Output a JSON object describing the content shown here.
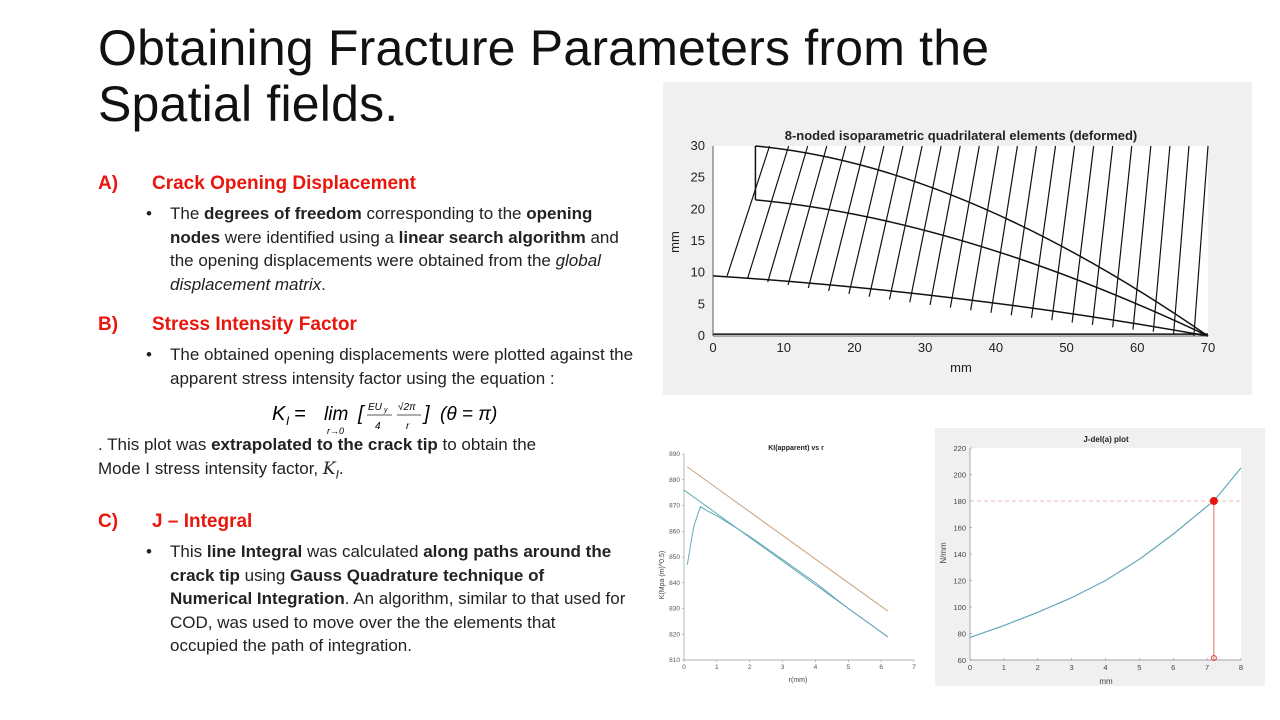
{
  "title": {
    "line1": "Obtaining Fracture Parameters from the",
    "line2": "Spatial fields."
  },
  "sections": {
    "a": {
      "letter": "A)",
      "heading": "Crack Opening Displacement",
      "t1": "The ",
      "b1": "degrees of freedom",
      "t2": " corresponding to the ",
      "b2": "opening nodes",
      "t3": " were identified using a ",
      "b3": "linear search algorithm",
      "t4": " and the opening displacements were obtained from the ",
      "i1": "global displacement matrix",
      "t5": "."
    },
    "b": {
      "letter": "B)",
      "heading": "Stress Intensity Factor",
      "t1": "The obtained opening displacements were plotted against the apparent stress intensity factor using the equation :",
      "p1": ". This plot was ",
      "pb1": "extrapolated to the crack tip",
      "p2": " to obtain the Mode I stress intensity factor, ",
      "p3": "K",
      "p4": "I",
      "p5": "."
    },
    "c": {
      "letter": "C)",
      "heading": "J – Integral",
      "t1": "This ",
      "b1": "line Integral",
      "t2": " was calculated ",
      "b2": "along paths around the crack tip",
      "t3": " using ",
      "b3": "Gauss Quadrature technique of Numerical Integration",
      "t4": ". An algorithm, similar to that used for COD, was used to move over the the elements that occupied the path of integration."
    }
  },
  "equation": {
    "lhs": "K",
    "lhs_sub": "I",
    "eq": " = ",
    "lim": "lim",
    "lim_sub": "r→0",
    "num1": "EU",
    "num1_sub": "y",
    "den1": "4",
    "num2": "√2π",
    "den2": "r",
    "tail": "(θ = π)"
  },
  "chart_data": [
    {
      "type": "mesh",
      "title": "8-noded isoparametric quadrilateral elements (deformed)",
      "xlabel": "mm",
      "ylabel": "mm",
      "xlim": [
        0,
        70
      ],
      "ylim": [
        0,
        30
      ],
      "xticks": [
        "0",
        "10",
        "20",
        "30",
        "40",
        "50",
        "60",
        "70"
      ],
      "yticks": [
        "0",
        "5",
        "10",
        "15",
        "20",
        "25",
        "30"
      ]
    },
    {
      "type": "line",
      "title": "KI(apparent) vs r",
      "xlabel": "r(mm)",
      "ylabel": "K(Mpa (m)^0.5)",
      "xlim": [
        0,
        7
      ],
      "ylim": [
        810,
        890
      ],
      "xticks": [
        "0",
        "1",
        "2",
        "3",
        "4",
        "5",
        "6",
        "7"
      ],
      "yticks": [
        "810",
        "820",
        "830",
        "840",
        "850",
        "860",
        "870",
        "880",
        "890"
      ],
      "series": [
        {
          "color": "#62a9b7",
          "x": [
            0.1,
            0.3,
            0.5,
            0.7,
            1.0,
            1.5,
            2.0,
            3.0,
            4.0,
            5.0,
            6.2
          ],
          "y": [
            847,
            862,
            869.5,
            868,
            866,
            862,
            858,
            849,
            840,
            830,
            819
          ]
        },
        {
          "color": "#62a9b7",
          "x": [
            0,
            6.2
          ],
          "y": [
            876,
            819
          ]
        },
        {
          "color": "#c9a07a",
          "x": [
            0.1,
            6.2
          ],
          "y": [
            885,
            829
          ]
        }
      ]
    },
    {
      "type": "line",
      "title": "J-del(a) plot",
      "xlabel": "mm",
      "ylabel": "N/mm",
      "xlim": [
        0,
        8
      ],
      "ylim": [
        60,
        220
      ],
      "xticks": [
        "0",
        "1",
        "2",
        "3",
        "4",
        "5",
        "6",
        "7",
        "8"
      ],
      "yticks": [
        "60",
        "80",
        "100",
        "120",
        "140",
        "160",
        "180",
        "200",
        "220"
      ],
      "series": [
        {
          "color": "#62a9b7",
          "x": [
            0,
            1,
            2,
            3,
            4,
            5,
            6,
            7,
            7.2,
            8
          ],
          "y": [
            77,
            86,
            96,
            107,
            120,
            136,
            155,
            176,
            180,
            205
          ]
        }
      ],
      "marker": {
        "x": 7.2,
        "y": 180,
        "color": "#e8160c"
      }
    }
  ]
}
